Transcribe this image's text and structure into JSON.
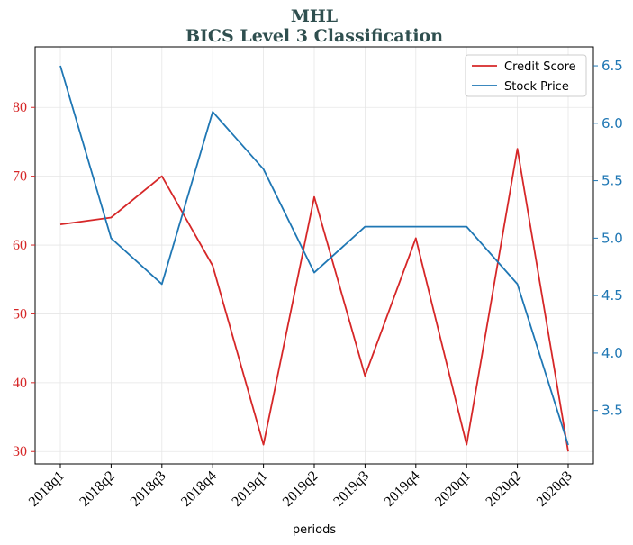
{
  "chart_data": {
    "type": "line",
    "title": "MHL",
    "subtitle": "BICS Level 3 Classification",
    "xlabel": "periods",
    "categories": [
      "2018q1",
      "2018q2",
      "2018q3",
      "2018q4",
      "2019q1",
      "2019q2",
      "2019q3",
      "2019q4",
      "2020q1",
      "2020q2",
      "2020q3"
    ],
    "series": [
      {
        "name": "Credit Score",
        "axis": "left",
        "color": "#d62728",
        "values": [
          63,
          64,
          70,
          57,
          31,
          67,
          41,
          61,
          31,
          74,
          30
        ]
      },
      {
        "name": "Stock Price",
        "axis": "right",
        "color": "#1f77b4",
        "values": [
          6.5,
          5.0,
          4.6,
          6.1,
          5.6,
          4.7,
          5.1,
          5.1,
          5.1,
          4.6,
          3.2
        ]
      }
    ],
    "y_left": {
      "ylim": [
        28.2,
        88.8
      ],
      "ticks": [
        30,
        40,
        50,
        60,
        70,
        80
      ]
    },
    "y_right": {
      "ylim": [
        3.035,
        6.665
      ],
      "ticks": [
        3.5,
        4.0,
        4.5,
        5.0,
        5.5,
        6.0,
        6.5
      ],
      "tick_labels": [
        "3.5",
        "4.0",
        "4.5",
        "5.0",
        "5.5",
        "6.0",
        "6.5"
      ]
    },
    "grid": true,
    "legend_position": "top-right"
  }
}
